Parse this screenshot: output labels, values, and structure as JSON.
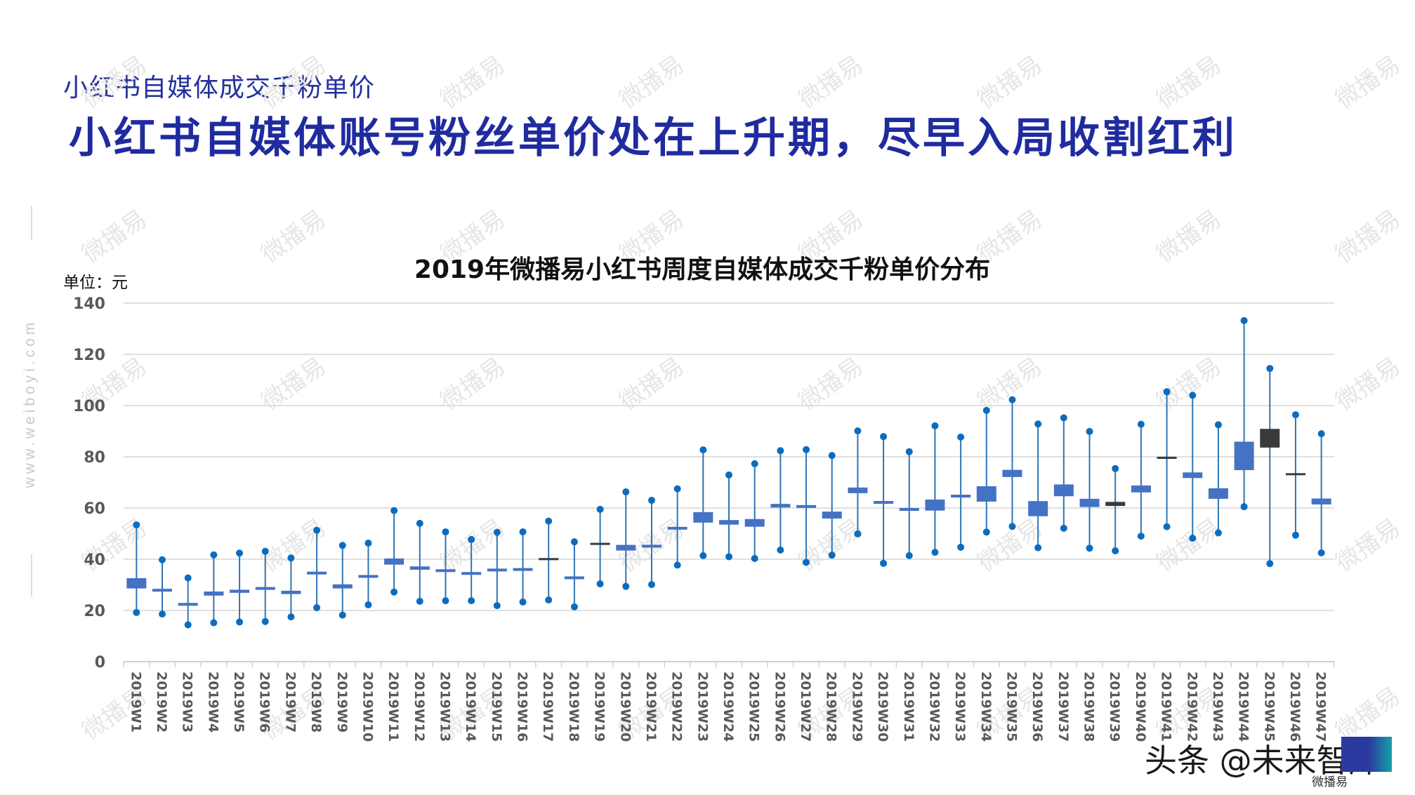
{
  "header": {
    "subtitle": "小红书自媒体成交千粉单价",
    "headline": "小红书自媒体账号粉丝单价处在上升期，尽早入局收割红利"
  },
  "side_url": "www.weiboyi.com",
  "watermark_text": "微播易",
  "footer": {
    "source": "头条 @未来智库",
    "logo_caption": "微播易"
  },
  "colors": {
    "headline": "#1f2b9e",
    "box": "#4472c4",
    "box_dark": "#3a3a3a",
    "whisker": "#2e75b6",
    "dot": "#0b6cbf",
    "grid": "#e0e0e0",
    "tick_label": "#595959"
  },
  "chart_data": {
    "type": "boxplot",
    "title": "2019年微播易小红书周度自媒体成交千粉单价分布",
    "unit_label": "单位：元",
    "xlabel": "",
    "ylabel": "单位：元",
    "ylim": [
      0,
      140
    ],
    "yticks": [
      0,
      20,
      40,
      60,
      80,
      100,
      120,
      140
    ],
    "grid": true,
    "legend": null,
    "categories": [
      "2019W1",
      "2019W2",
      "2019W3",
      "2019W4",
      "2019W5",
      "2019W6",
      "2019W7",
      "2019W8",
      "2019W9",
      "2019W10",
      "2019W11",
      "2019W12",
      "2019W13",
      "2019W14",
      "2019W15",
      "2019W16",
      "2019W17",
      "2019W18",
      "2019W19",
      "2019W20",
      "2019W21",
      "2019W22",
      "2019W23",
      "2019W24",
      "2019W25",
      "2019W26",
      "2019W27",
      "2019W28",
      "2019W29",
      "2019W30",
      "2019W31",
      "2019W32",
      "2019W33",
      "2019W34",
      "2019W35",
      "2019W36",
      "2019W37",
      "2019W38",
      "2019W39",
      "2019W40",
      "2019W41",
      "2019W42",
      "2019W43",
      "2019W44",
      "2019W45",
      "2019W46",
      "2019W47"
    ],
    "series": [
      {
        "name": "max",
        "values": [
          53.4,
          39.8,
          32.7,
          41.7,
          42.4,
          43.1,
          40.5,
          51.3,
          45.4,
          46.3,
          59.0,
          54.0,
          50.7,
          47.7,
          50.5,
          50.7,
          54.9,
          46.8,
          59.5,
          66.3,
          63.0,
          67.5,
          82.7,
          72.9,
          77.3,
          82.4,
          82.8,
          80.5,
          90.1,
          87.9,
          82.0,
          92.1,
          87.7,
          98.1,
          102.3,
          92.8,
          95.2,
          89.9,
          75.4,
          92.7,
          105.4,
          104.0,
          92.5,
          133.2,
          114.5,
          96.4,
          89.0
        ]
      },
      {
        "name": "q3",
        "values": [
          32.6,
          28.4,
          22.7,
          27.4,
          28.1,
          29.0,
          27.7,
          35.1,
          30.2,
          33.6,
          40.3,
          37.2,
          36.1,
          34.8,
          36.0,
          36.4,
          40.2,
          33.2,
          46.2,
          45.6,
          45.5,
          52.3,
          58.4,
          55.3,
          55.7,
          61.6,
          60.8,
          58.6,
          68.0,
          62.4,
          59.9,
          63.3,
          65.2,
          68.5,
          74.9,
          62.7,
          69.2,
          63.6,
          62.4,
          68.8,
          79.8,
          73.9,
          67.7,
          85.9,
          90.9,
          73.4,
          63.7
        ]
      },
      {
        "name": "q1",
        "values": [
          28.6,
          27.4,
          22.1,
          25.8,
          26.9,
          28.2,
          26.4,
          34.1,
          28.6,
          33.0,
          37.9,
          35.9,
          35.0,
          34.1,
          35.6,
          35.6,
          39.9,
          32.3,
          45.8,
          43.4,
          44.7,
          51.9,
          54.3,
          53.5,
          52.7,
          60.2,
          60.4,
          55.9,
          65.8,
          62.0,
          59.0,
          59.0,
          64.1,
          62.5,
          72.1,
          56.8,
          64.6,
          60.4,
          60.8,
          66.1,
          79.4,
          71.7,
          63.6,
          74.8,
          83.6,
          73.0,
          61.4
        ]
      },
      {
        "name": "min",
        "values": [
          19.2,
          18.6,
          14.4,
          15.2,
          15.5,
          15.7,
          17.5,
          21.1,
          18.2,
          22.2,
          27.2,
          23.6,
          23.8,
          23.8,
          21.9,
          23.3,
          24.1,
          21.4,
          30.4,
          29.4,
          30.1,
          37.7,
          41.4,
          41.0,
          40.3,
          43.6,
          38.8,
          41.6,
          49.9,
          38.4,
          41.4,
          42.7,
          44.7,
          50.6,
          52.8,
          44.5,
          52.1,
          44.3,
          43.3,
          49.0,
          52.7,
          48.2,
          50.3,
          60.5,
          38.3,
          49.4,
          42.5
        ]
      }
    ],
    "dark_boxes": [
      "2019W17",
      "2019W19",
      "2019W39",
      "2019W41",
      "2019W45",
      "2019W46"
    ]
  }
}
